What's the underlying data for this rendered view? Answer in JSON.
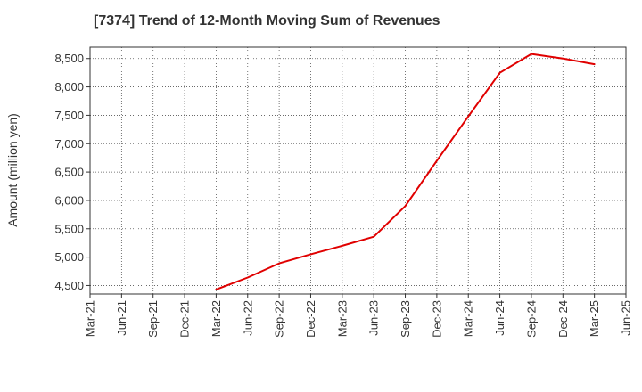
{
  "chart_data": {
    "type": "line",
    "title": "[7374]  Trend of 12-Month Moving Sum of Revenues",
    "xlabel": "",
    "ylabel": "Amount (million yen)",
    "ylim": [
      4350,
      8700
    ],
    "yticks": [
      4500,
      5000,
      5500,
      6000,
      6500,
      7000,
      7500,
      8000,
      8500
    ],
    "ytick_labels": [
      "4,500",
      "5,000",
      "5,500",
      "6,000",
      "6,500",
      "7,000",
      "7,500",
      "8,000",
      "8,500"
    ],
    "categories": [
      "Mar-21",
      "Jun-21",
      "Sep-21",
      "Dec-21",
      "Mar-22",
      "Jun-22",
      "Sep-22",
      "Dec-22",
      "Mar-23",
      "Jun-23",
      "Sep-23",
      "Dec-23",
      "Mar-24",
      "Jun-24",
      "Sep-24",
      "Dec-24",
      "Mar-25",
      "Jun-25"
    ],
    "grid": true,
    "series": [
      {
        "color": "#e00000",
        "values": [
          null,
          null,
          null,
          null,
          4430,
          4640,
          4890,
          5050,
          5200,
          5360,
          5900,
          6700,
          7480,
          8250,
          8580,
          8500,
          8400,
          null
        ]
      }
    ]
  }
}
